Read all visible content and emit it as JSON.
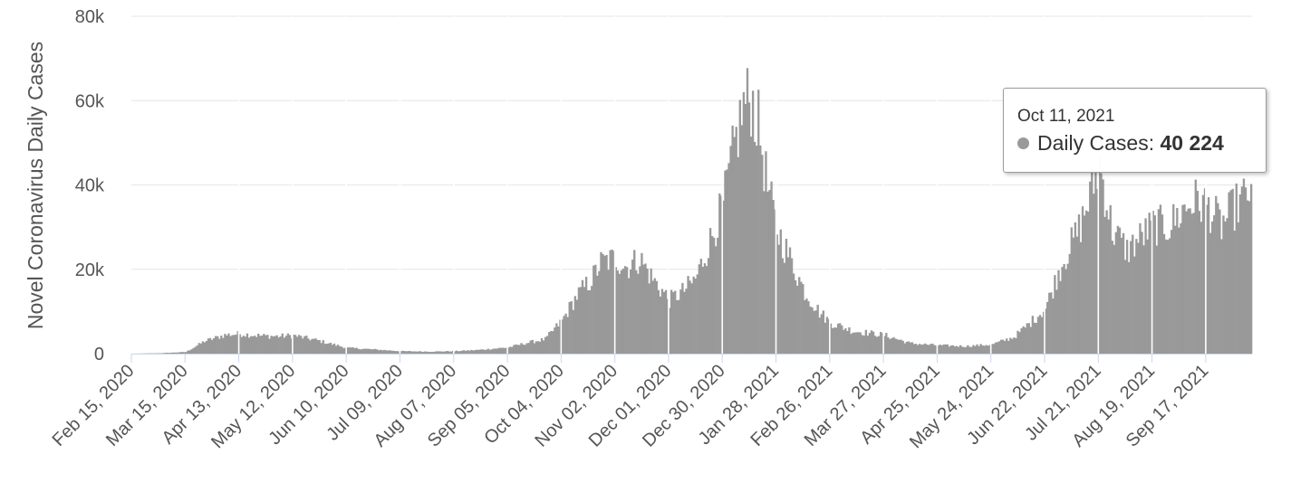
{
  "chart_data": {
    "type": "bar",
    "title": "",
    "xlabel": "",
    "ylabel": "Novel Coronavirus Daily Cases",
    "ylim": [
      0,
      80000
    ],
    "yticks": [
      0,
      20000,
      40000,
      60000,
      80000
    ],
    "ytick_labels": [
      "0",
      "20k",
      "40k",
      "60k",
      "80k"
    ],
    "x_start": "2020-02-15",
    "x_end": "2021-10-11",
    "xtick_labels": [
      "Feb 15, 2020",
      "Mar 15, 2020",
      "Apr 13, 2020",
      "May 12, 2020",
      "Jun 10, 2020",
      "Jul 09, 2020",
      "Aug 07, 2020",
      "Sep 05, 2020",
      "Oct 04, 2020",
      "Nov 02, 2020",
      "Dec 01, 2020",
      "Dec 30, 2020",
      "Jan 28, 2021",
      "Feb 26, 2021",
      "Mar 27, 2021",
      "Apr 25, 2021",
      "May 24, 2021",
      "Jun 22, 2021",
      "Jul 21, 2021",
      "Aug 19, 2021",
      "Sep 17, 2021"
    ],
    "grid": true,
    "bar_color": "#999999",
    "series": [
      {
        "name": "Daily Cases",
        "x": [
          "2020-02-15",
          "2020-03-01",
          "2020-03-15",
          "2020-03-25",
          "2020-04-05",
          "2020-04-13",
          "2020-04-25",
          "2020-05-05",
          "2020-05-12",
          "2020-05-25",
          "2020-06-01",
          "2020-06-10",
          "2020-06-25",
          "2020-07-09",
          "2020-07-25",
          "2020-08-07",
          "2020-08-20",
          "2020-09-05",
          "2020-09-15",
          "2020-09-25",
          "2020-10-04",
          "2020-10-12",
          "2020-10-20",
          "2020-10-25",
          "2020-11-02",
          "2020-11-08",
          "2020-11-15",
          "2020-11-22",
          "2020-12-01",
          "2020-12-08",
          "2020-12-15",
          "2020-12-22",
          "2020-12-30",
          "2021-01-05",
          "2021-01-10",
          "2021-01-14",
          "2021-01-18",
          "2021-01-23",
          "2021-01-28",
          "2021-02-05",
          "2021-02-12",
          "2021-02-20",
          "2021-02-26",
          "2021-03-10",
          "2021-03-27",
          "2021-04-10",
          "2021-04-25",
          "2021-05-10",
          "2021-05-24",
          "2021-06-05",
          "2021-06-15",
          "2021-06-22",
          "2021-07-01",
          "2021-07-10",
          "2021-07-16",
          "2021-07-21",
          "2021-07-28",
          "2021-08-05",
          "2021-08-12",
          "2021-08-19",
          "2021-08-28",
          "2021-09-05",
          "2021-09-10",
          "2021-09-17",
          "2021-09-25",
          "2021-10-01",
          "2021-10-06",
          "2021-10-11"
        ],
        "values": [
          0,
          100,
          400,
          3000,
          4500,
          4800,
          4300,
          4200,
          4400,
          3200,
          2400,
          1400,
          1000,
          600,
          500,
          600,
          900,
          1500,
          2600,
          3500,
          8000,
          14000,
          18000,
          22000,
          23000,
          21000,
          23000,
          18000,
          13000,
          15000,
          18000,
          26000,
          36000,
          50000,
          60000,
          62000,
          55000,
          40000,
          30000,
          22000,
          15000,
          10000,
          7500,
          5500,
          4500,
          2500,
          2000,
          1800,
          2200,
          4000,
          8000,
          11000,
          22000,
          30000,
          38000,
          46000,
          30000,
          25000,
          28000,
          31000,
          31000,
          35000,
          37000,
          36000,
          31000,
          35000,
          37000,
          40224
        ]
      }
    ]
  },
  "tooltip": {
    "date": "Oct 11, 2021",
    "series_label": "Daily Cases:",
    "value": "40 224",
    "dot_color": "#999999"
  }
}
